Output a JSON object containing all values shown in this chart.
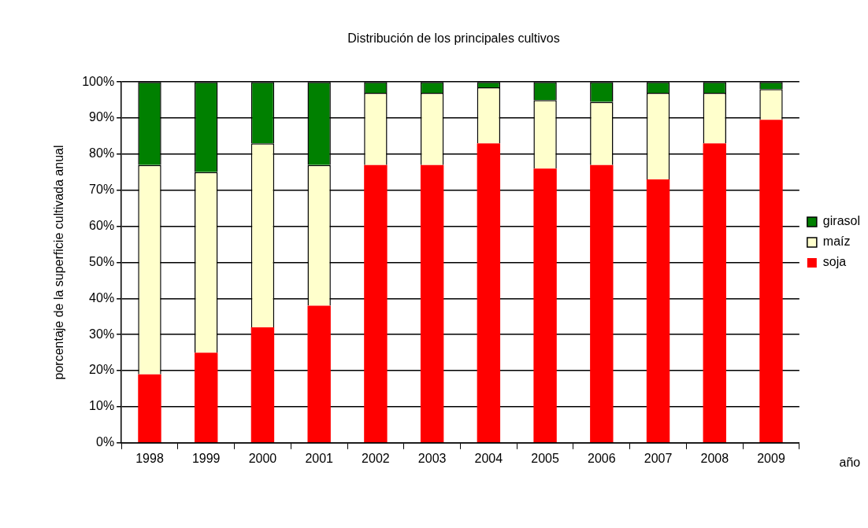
{
  "chart_data": {
    "type": "bar",
    "title": "Distribución de los principales cultivos",
    "xlabel": "año",
    "ylabel": "porcentaje de la superficie cultivada anual",
    "categories": [
      "1998",
      "1999",
      "2000",
      "2001",
      "2002",
      "2003",
      "2004",
      "2005",
      "2006",
      "2007",
      "2008",
      "2009"
    ],
    "series": [
      {
        "name": "soja",
        "color": "#ff0000",
        "values": [
          19,
          25,
          32,
          38,
          77,
          77,
          83,
          76,
          77,
          73,
          83,
          89.5
        ]
      },
      {
        "name": "maíz",
        "color": "#ffffcc",
        "values": [
          58,
          50,
          51,
          39,
          20,
          20,
          15.5,
          19,
          17.5,
          24,
          14,
          8.5
        ]
      },
      {
        "name": "girasol",
        "color": "#008000",
        "values": [
          23,
          25,
          17,
          23,
          3,
          3,
          1.5,
          5,
          5.5,
          3,
          3,
          2
        ]
      }
    ],
    "stacked": true,
    "ylim": [
      0,
      100
    ],
    "yticks": [
      {
        "value": 0,
        "label": "0%"
      },
      {
        "value": 10,
        "label": "10%"
      },
      {
        "value": 20,
        "label": "20%"
      },
      {
        "value": 30,
        "label": "30%"
      },
      {
        "value": 40,
        "label": "40%"
      },
      {
        "value": 50,
        "label": "50%"
      },
      {
        "value": 60,
        "label": "60%"
      },
      {
        "value": 70,
        "label": "70%"
      },
      {
        "value": 80,
        "label": "80%"
      },
      {
        "value": 90,
        "label": "90%"
      },
      {
        "value": 100,
        "label": "100%"
      }
    ],
    "grid": "y",
    "legend": "right"
  }
}
